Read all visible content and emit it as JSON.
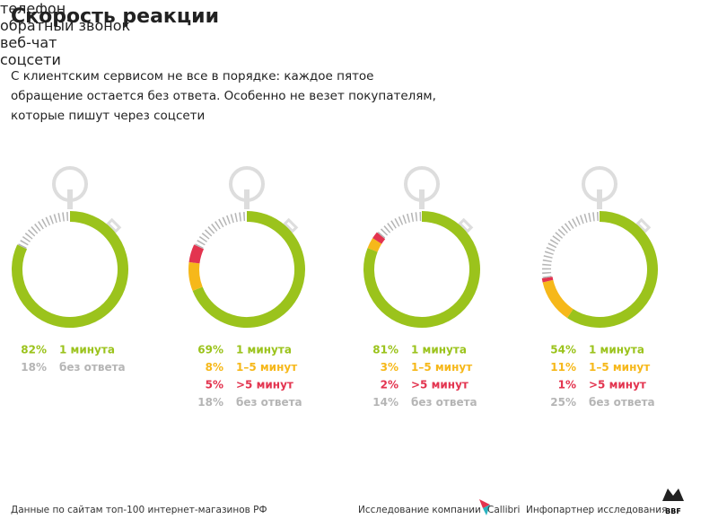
{
  "title": "Скорость реакции",
  "subtitle": "С клиентским сервисом не все в порядке: каждое пятое обращение остается без ответа. Особенно не везет покупателям, которые пишут через соцсети",
  "chart_data": [
    {
      "type": "donut",
      "title": "телефон",
      "categories": [
        "1 минута",
        "без ответа"
      ],
      "values": [
        82,
        18
      ],
      "value_labels": [
        "82%",
        "18%"
      ],
      "colors": [
        "#9bc31c",
        "#b5b5b5"
      ]
    },
    {
      "type": "donut",
      "title": "обратный звонок",
      "categories": [
        "1 минута",
        "1–5 минут",
        ">5 минут",
        "без ответа"
      ],
      "values": [
        69,
        8,
        5,
        18
      ],
      "value_labels": [
        "69%",
        "8%",
        "5%",
        "18%"
      ],
      "colors": [
        "#9bc31c",
        "#f6b81a",
        "#e3344f",
        "#b5b5b5"
      ]
    },
    {
      "type": "donut",
      "title": "веб-чат",
      "categories": [
        "1 минута",
        "1–5 минут",
        ">5 минут",
        "без ответа"
      ],
      "values": [
        81,
        3,
        2,
        14
      ],
      "value_labels": [
        "81%",
        "3%",
        "2%",
        "14%"
      ],
      "colors": [
        "#9bc31c",
        "#f6b81a",
        "#e3344f",
        "#b5b5b5"
      ]
    },
    {
      "type": "donut",
      "title": "соцсети",
      "categories": [
        "1 минута",
        "1–5 минут",
        ">5 минут",
        "без ответа"
      ],
      "values": [
        54,
        11,
        1,
        25
      ],
      "value_labels": [
        "54%",
        "11%",
        "1%",
        "25%"
      ],
      "colors": [
        "#9bc31c",
        "#f6b81a",
        "#e3344f",
        "#b5b5b5"
      ]
    }
  ],
  "footer": {
    "source": "Данные по сайтам топ-100 интернет-магазинов РФ",
    "research": "Исследование компании",
    "research_brand": "Callibri",
    "partner": "Инфопартнер исследования",
    "partner_brand": "BBF"
  }
}
